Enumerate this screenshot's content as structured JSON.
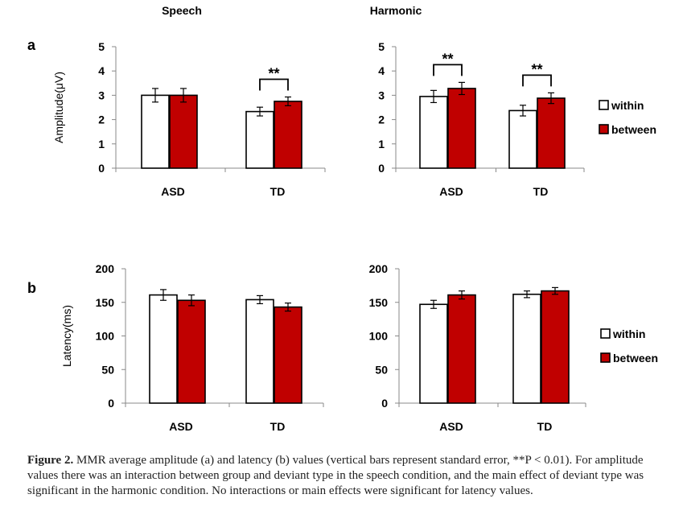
{
  "panel_labels": [
    "a",
    "b"
  ],
  "column_titles": [
    "Speech",
    "Harmonic"
  ],
  "colors": {
    "within": "#ffffff",
    "between": "#c00000",
    "stroke": "#000000"
  },
  "caption": {
    "label": "Figure 2.",
    "text": "MMR average amplitude (a) and latency (b) values (vertical bars represent standard error, **P < 0.01). For amplitude values there was an interaction between group and deviant type in the speech condition, and the main effect of deviant type was significant in the harmonic condition. No interactions or main effects were significant for latency values."
  },
  "chart_data": [
    {
      "type": "bar",
      "panel": "a",
      "title": "Speech",
      "xlabel": "",
      "ylabel": "Amplitude(μV)",
      "categories": [
        "ASD",
        "TD"
      ],
      "ylim": [
        0,
        5
      ],
      "yticks": [
        0,
        1,
        2,
        3,
        4,
        5
      ],
      "legend": "none",
      "series": [
        {
          "name": "within",
          "values": [
            3.0,
            2.33
          ],
          "errors": [
            0.28,
            0.18
          ]
        },
        {
          "name": "between",
          "values": [
            3.0,
            2.75
          ],
          "errors": [
            0.28,
            0.18
          ]
        }
      ],
      "annotations": [
        {
          "category": "TD",
          "text": "**"
        }
      ]
    },
    {
      "type": "bar",
      "panel": "a",
      "title": "Harmonic",
      "xlabel": "",
      "ylabel": "",
      "categories": [
        "ASD",
        "TD"
      ],
      "ylim": [
        0,
        5
      ],
      "yticks": [
        0,
        1,
        2,
        3,
        4,
        5
      ],
      "legend": "right",
      "series": [
        {
          "name": "within",
          "values": [
            2.95,
            2.37
          ],
          "errors": [
            0.25,
            0.22
          ]
        },
        {
          "name": "between",
          "values": [
            3.28,
            2.88
          ],
          "errors": [
            0.25,
            0.22
          ]
        }
      ],
      "annotations": [
        {
          "category": "ASD",
          "text": "**"
        },
        {
          "category": "TD",
          "text": "**"
        }
      ]
    },
    {
      "type": "bar",
      "panel": "b",
      "title": "",
      "xlabel": "",
      "ylabel": "Latency(ms)",
      "categories": [
        "ASD",
        "TD"
      ],
      "ylim": [
        0,
        200
      ],
      "yticks": [
        0,
        50,
        100,
        150,
        200
      ],
      "legend": "none",
      "series": [
        {
          "name": "within",
          "values": [
            161,
            154
          ],
          "errors": [
            8,
            6
          ]
        },
        {
          "name": "between",
          "values": [
            153,
            143
          ],
          "errors": [
            8,
            6
          ]
        }
      ],
      "annotations": []
    },
    {
      "type": "bar",
      "panel": "b",
      "title": "",
      "xlabel": "",
      "ylabel": "",
      "categories": [
        "ASD",
        "TD"
      ],
      "ylim": [
        0,
        200
      ],
      "yticks": [
        0,
        50,
        100,
        150,
        200
      ],
      "legend": "right",
      "series": [
        {
          "name": "within",
          "values": [
            147,
            162
          ],
          "errors": [
            6,
            5
          ]
        },
        {
          "name": "between",
          "values": [
            161,
            167
          ],
          "errors": [
            6,
            5
          ]
        }
      ],
      "annotations": []
    }
  ]
}
